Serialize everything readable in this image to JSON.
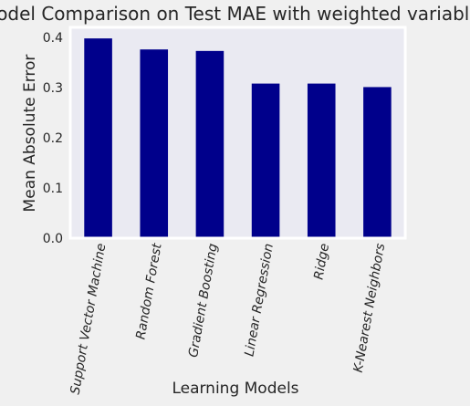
{
  "chart_data": {
    "type": "bar",
    "title": "Model Comparison on Test MAE with weighted variables",
    "xlabel": "Learning Models",
    "ylabel": "Mean Absolute Error",
    "categories": [
      "Support Vector Machine",
      "Random Forest",
      "Gradient Boosting",
      "Linear Regression",
      "Ridge",
      "K-Nearest Neighbors"
    ],
    "values": [
      0.398,
      0.376,
      0.373,
      0.308,
      0.308,
      0.301
    ],
    "ylim": [
      0,
      0.42
    ],
    "yticks": [
      0.0,
      0.1,
      0.2,
      0.3,
      0.4
    ],
    "ytick_labels": [
      "0.0",
      "0.1",
      "0.2",
      "0.3",
      "0.4"
    ],
    "grid": false,
    "legend": "none",
    "colors": {
      "bar": "#00008b",
      "plot_background": "#eaeaf2",
      "figure_background": "#f0f0f0",
      "axes_edge": "#ffffff"
    }
  }
}
